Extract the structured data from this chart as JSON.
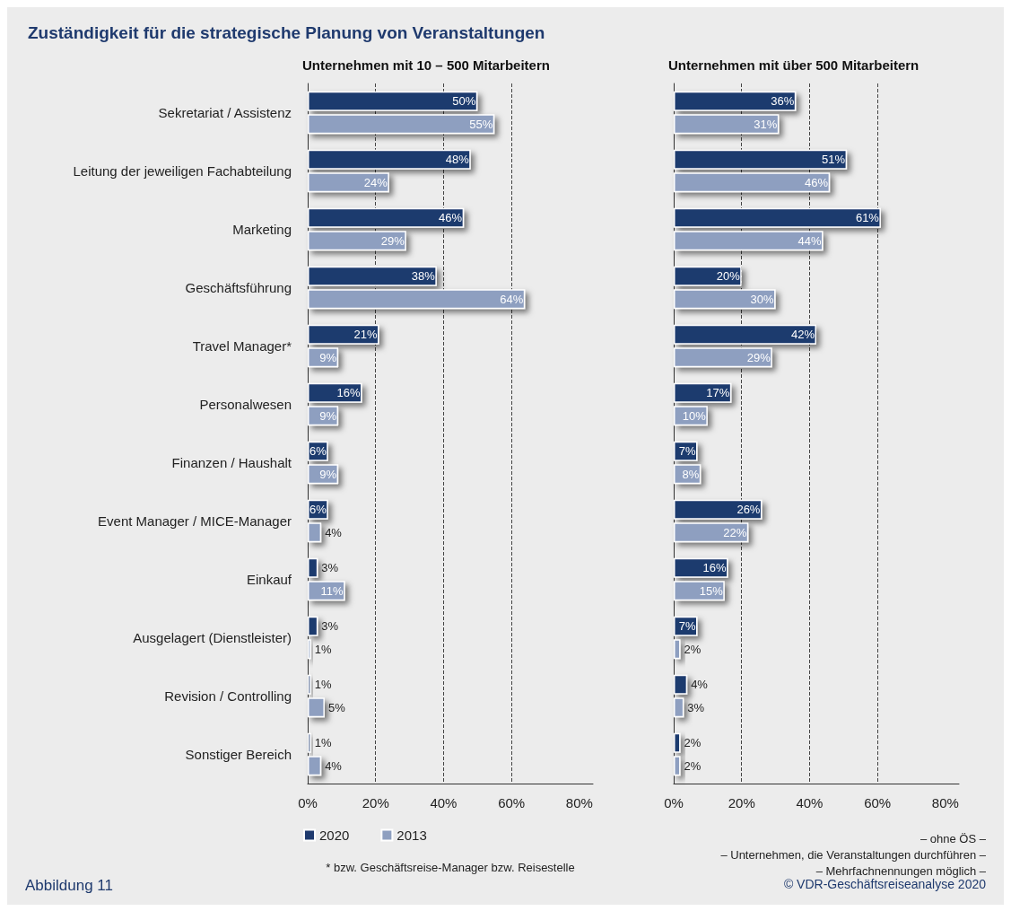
{
  "chart_data": [
    {
      "type": "bar",
      "orientation": "horizontal",
      "title": "Zuständigkeit für die strategische Planung von Veranstaltungen",
      "subtitle": "Unternehmen mit 10 – 500 Mitarbeitern",
      "categories": [
        "Sekretariat / Assistenz",
        "Leitung der jeweiligen Fachabteilung",
        "Marketing",
        "Geschäftsführung",
        "Travel Manager*",
        "Personalwesen",
        "Finanzen / Haushalt",
        "Event Manager / MICE-Manager",
        "Einkauf",
        "Ausgelagert (Dienstleister)",
        "Revision / Controlling",
        "Sonstiger Bereich"
      ],
      "series": [
        {
          "name": "2020",
          "color": "#1f3a6e",
          "values": [
            50,
            48,
            46,
            38,
            21,
            16,
            6,
            6,
            3,
            3,
            1,
            1
          ],
          "value_labels": [
            "50%",
            "48%",
            "46%",
            "38%",
            "21%",
            "16%",
            "6%",
            "6%",
            "3%",
            "3%",
            "1%",
            "1%"
          ]
        },
        {
          "name": "2013",
          "color": "#8e9fc0",
          "values": [
            55,
            24,
            29,
            64,
            9,
            9,
            9,
            4,
            11,
            1,
            5,
            4
          ],
          "value_labels": [
            "55%",
            "24%",
            "29%",
            "64%",
            "9%",
            "9%",
            "9%",
            "4%",
            "11%",
            "1%",
            "5%",
            "4%"
          ]
        }
      ],
      "xlim": [
        0,
        84
      ],
      "xticks": [
        {
          "value": 0,
          "label": "0%"
        },
        {
          "value": 20,
          "label": "20%"
        },
        {
          "value": 40,
          "label": "40%"
        },
        {
          "value": 60,
          "label": "60%"
        },
        {
          "value": 80,
          "label": "80%"
        }
      ],
      "grid": "x",
      "legend": "bottom left",
      "annotations": [
        "* bzw. Geschäftsreise-Manager bzw. Reisestelle",
        "Abbildung 11"
      ]
    },
    {
      "type": "bar",
      "orientation": "horizontal",
      "subtitle": "Unternehmen mit über 500 Mitarbeitern",
      "categories": [
        null,
        null,
        null,
        null,
        null,
        null,
        null,
        null,
        null,
        null,
        null,
        null
      ],
      "series": [
        {
          "color": "#1f3a6e",
          "values": [
            36,
            51,
            61,
            20,
            42,
            17,
            7,
            26,
            16,
            7,
            4,
            2
          ],
          "value_labels": [
            "36%",
            "51%",
            "61%",
            "20%",
            "42%",
            "17%",
            "7%",
            "26%",
            "16%",
            "7%",
            "4%",
            "2%"
          ]
        },
        {
          "color": "#8e9fc0",
          "values": [
            31,
            46,
            44,
            30,
            29,
            10,
            8,
            22,
            15,
            2,
            3,
            2
          ],
          "value_labels": [
            "31%",
            "46%",
            "44%",
            "30%",
            "29%",
            "10%",
            "8%",
            "22%",
            "15%",
            "2%",
            "3%",
            "2%"
          ]
        }
      ],
      "xlim": [
        0,
        84
      ],
      "xticks": [
        {
          "value": 0,
          "label": "0%"
        },
        {
          "value": 20,
          "label": "20%"
        },
        {
          "value": 40,
          "label": "40%"
        },
        {
          "value": 60,
          "label": "60%"
        },
        {
          "value": 80,
          "label": "80%"
        }
      ],
      "grid": "x",
      "tick_labels": "x",
      "annotations": [
        "– ohne ÖS –",
        "– Unternehmen, die Veranstaltungen durchführen –",
        "– Mehrfachnennungen möglich –",
        "© VDR-Geschäftsreiseanalyse 2020"
      ]
    }
  ]
}
